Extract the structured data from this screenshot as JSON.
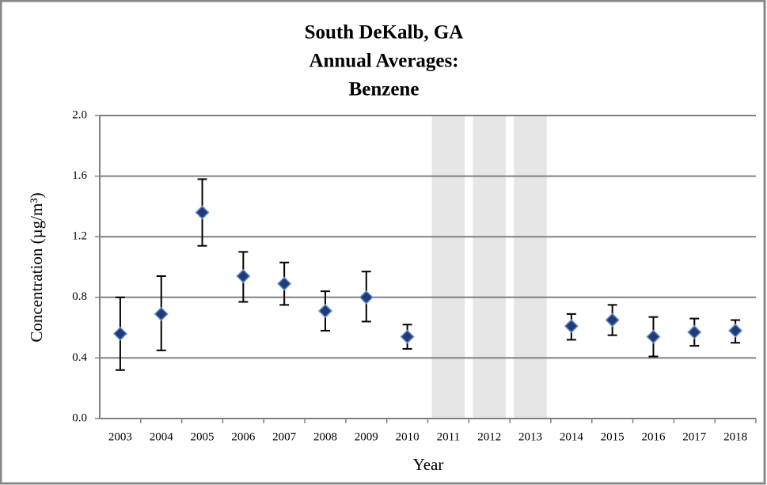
{
  "chart_data": {
    "type": "errorbar",
    "title": [
      "South DeKalb, GA",
      "Annual Averages:",
      "Benzene"
    ],
    "xlabel": "Year",
    "ylabel": "Concentration (µg/m³)",
    "categories": [
      "2003",
      "2004",
      "2005",
      "2006",
      "2007",
      "2008",
      "2009",
      "2010",
      "2011",
      "2012",
      "2013",
      "2014",
      "2015",
      "2016",
      "2017",
      "2018"
    ],
    "values": [
      0.56,
      0.69,
      1.36,
      0.94,
      0.89,
      0.71,
      0.8,
      0.54,
      null,
      null,
      null,
      0.61,
      0.65,
      0.54,
      0.57,
      0.58
    ],
    "error_plus": [
      0.24,
      0.25,
      0.22,
      0.16,
      0.14,
      0.13,
      0.17,
      0.08,
      null,
      null,
      null,
      0.08,
      0.1,
      0.13,
      0.09,
      0.07
    ],
    "error_minus": [
      0.24,
      0.24,
      0.22,
      0.17,
      0.14,
      0.13,
      0.16,
      0.08,
      null,
      null,
      null,
      0.09,
      0.1,
      0.13,
      0.09,
      0.08
    ],
    "color": "#1f3c78",
    "ylim": [
      0,
      2.0
    ],
    "yticks": [
      {
        "value": 0,
        "label": "0.0"
      },
      {
        "value": 0.4,
        "label": "0.4"
      },
      {
        "value": 0.8,
        "label": "0.8"
      },
      {
        "value": 1.2,
        "label": "1.2"
      },
      {
        "value": 1.6,
        "label": "1.6"
      },
      {
        "value": 2.0,
        "label": "2.0"
      }
    ],
    "grid": true
  }
}
